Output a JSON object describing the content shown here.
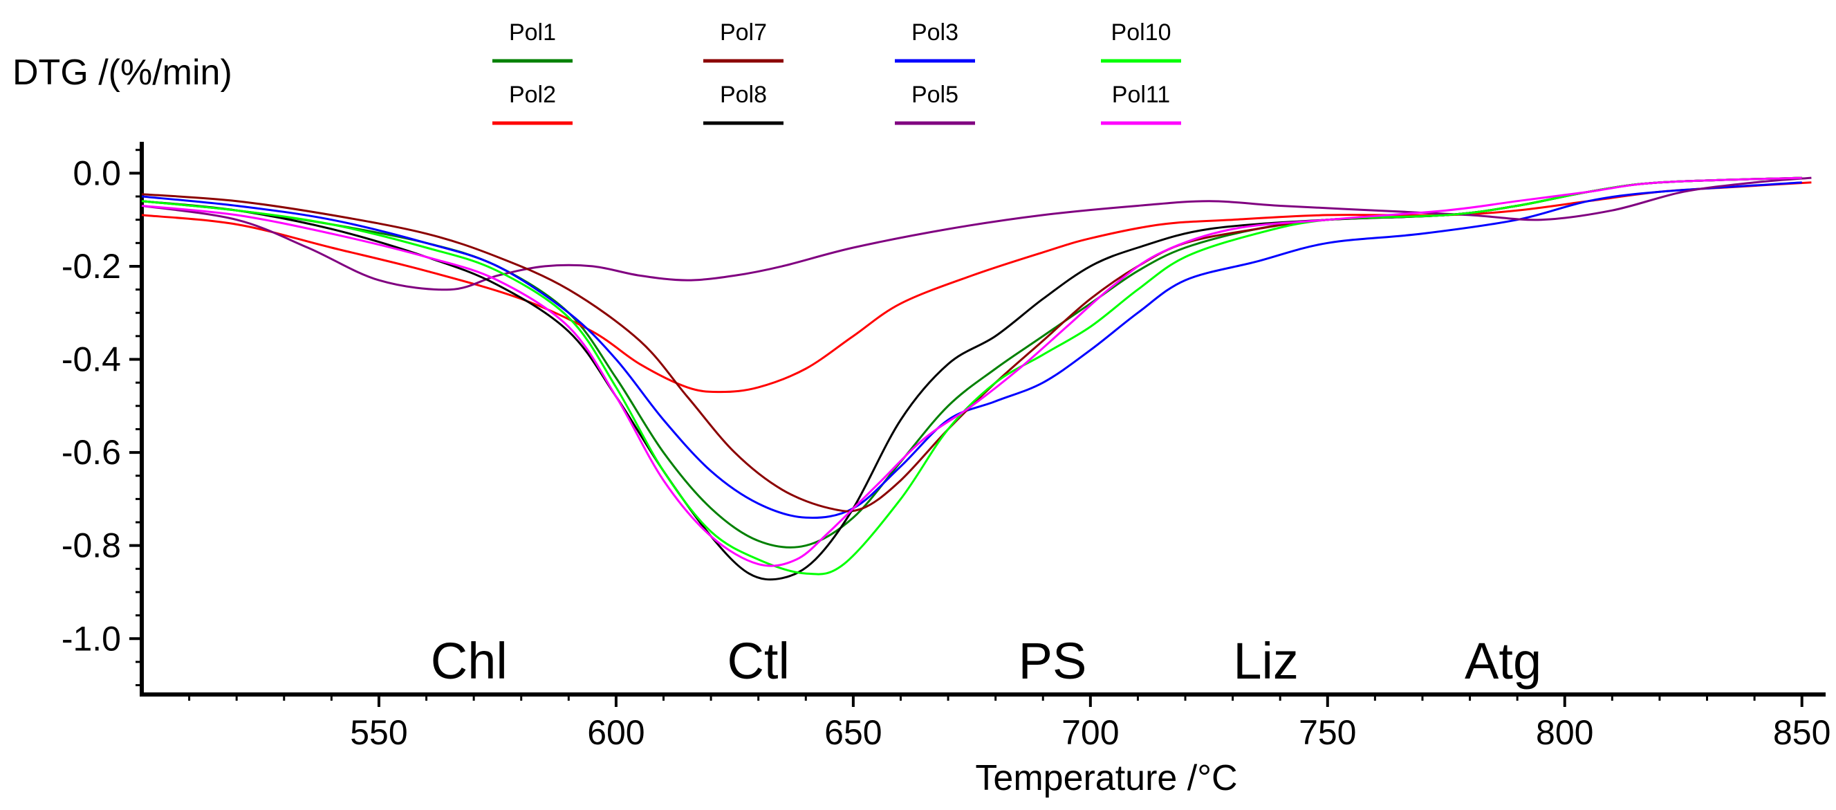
{
  "chart_data": {
    "type": "line",
    "title": "",
    "xlabel": "Temperature /°C",
    "ylabel": "DTG /(%/min)",
    "xlim": [
      500,
      855
    ],
    "ylim": [
      -1.12,
      0.06
    ],
    "grid": false,
    "legend_position": "top",
    "xticks": [
      550,
      600,
      650,
      700,
      750,
      800,
      850
    ],
    "yticks": [
      0.0,
      -0.2,
      -0.4,
      -0.6,
      -0.8,
      -1.0
    ],
    "xtick_labels": [
      "550",
      "600",
      "650",
      "700",
      "750",
      "800",
      "850"
    ],
    "ytick_labels": [
      "0.0",
      "-0.2",
      "-0.4",
      "-0.6",
      "-0.8",
      "-1.0"
    ],
    "annotations": [
      {
        "text": "Chl",
        "x": 569,
        "y": -1.05
      },
      {
        "text": "Ctl",
        "x": 630,
        "y": -1.05
      },
      {
        "text": "PS",
        "x": 692,
        "y": -1.05
      },
      {
        "text": "Liz",
        "x": 737,
        "y": -1.05
      },
      {
        "text": "Atg",
        "x": 787,
        "y": -1.05
      }
    ],
    "series": [
      {
        "name": "Pol1",
        "color": "#008000",
        "points": [
          [
            500,
            -0.06
          ],
          [
            520,
            -0.08
          ],
          [
            540,
            -0.11
          ],
          [
            560,
            -0.15
          ],
          [
            575,
            -0.2
          ],
          [
            590,
            -0.3
          ],
          [
            600,
            -0.44
          ],
          [
            610,
            -0.6
          ],
          [
            620,
            -0.72
          ],
          [
            630,
            -0.79
          ],
          [
            640,
            -0.8
          ],
          [
            650,
            -0.74
          ],
          [
            660,
            -0.62
          ],
          [
            670,
            -0.5
          ],
          [
            680,
            -0.42
          ],
          [
            690,
            -0.35
          ],
          [
            700,
            -0.28
          ],
          [
            710,
            -0.21
          ],
          [
            720,
            -0.16
          ],
          [
            735,
            -0.12
          ],
          [
            750,
            -0.1
          ],
          [
            775,
            -0.09
          ],
          [
            790,
            -0.07
          ],
          [
            805,
            -0.04
          ],
          [
            820,
            -0.02
          ],
          [
            850,
            -0.01
          ]
        ]
      },
      {
        "name": "Pol2",
        "color": "#ff0000",
        "points": [
          [
            500,
            -0.09
          ],
          [
            520,
            -0.11
          ],
          [
            540,
            -0.16
          ],
          [
            560,
            -0.21
          ],
          [
            580,
            -0.27
          ],
          [
            595,
            -0.34
          ],
          [
            605,
            -0.41
          ],
          [
            615,
            -0.46
          ],
          [
            622,
            -0.47
          ],
          [
            630,
            -0.46
          ],
          [
            640,
            -0.42
          ],
          [
            650,
            -0.35
          ],
          [
            660,
            -0.28
          ],
          [
            675,
            -0.22
          ],
          [
            690,
            -0.17
          ],
          [
            700,
            -0.14
          ],
          [
            715,
            -0.11
          ],
          [
            730,
            -0.1
          ],
          [
            750,
            -0.09
          ],
          [
            775,
            -0.09
          ],
          [
            790,
            -0.08
          ],
          [
            805,
            -0.06
          ],
          [
            820,
            -0.04
          ],
          [
            835,
            -0.03
          ],
          [
            852,
            -0.02
          ]
        ]
      },
      {
        "name": "Pol3",
        "color": "#0000ff",
        "points": [
          [
            500,
            -0.05
          ],
          [
            520,
            -0.07
          ],
          [
            540,
            -0.1
          ],
          [
            560,
            -0.15
          ],
          [
            575,
            -0.2
          ],
          [
            590,
            -0.3
          ],
          [
            600,
            -0.4
          ],
          [
            610,
            -0.53
          ],
          [
            620,
            -0.64
          ],
          [
            630,
            -0.71
          ],
          [
            640,
            -0.74
          ],
          [
            650,
            -0.72
          ],
          [
            660,
            -0.63
          ],
          [
            670,
            -0.53
          ],
          [
            680,
            -0.49
          ],
          [
            690,
            -0.45
          ],
          [
            700,
            -0.38
          ],
          [
            710,
            -0.3
          ],
          [
            720,
            -0.23
          ],
          [
            735,
            -0.19
          ],
          [
            750,
            -0.15
          ],
          [
            770,
            -0.13
          ],
          [
            790,
            -0.1
          ],
          [
            805,
            -0.06
          ],
          [
            820,
            -0.04
          ],
          [
            850,
            -0.02
          ]
        ]
      },
      {
        "name": "Pol5",
        "color": "#800080",
        "points": [
          [
            500,
            -0.07
          ],
          [
            520,
            -0.1
          ],
          [
            535,
            -0.16
          ],
          [
            550,
            -0.23
          ],
          [
            565,
            -0.25
          ],
          [
            575,
            -0.22
          ],
          [
            585,
            -0.2
          ],
          [
            595,
            -0.2
          ],
          [
            605,
            -0.22
          ],
          [
            615,
            -0.23
          ],
          [
            625,
            -0.22
          ],
          [
            635,
            -0.2
          ],
          [
            650,
            -0.16
          ],
          [
            670,
            -0.12
          ],
          [
            690,
            -0.09
          ],
          [
            710,
            -0.07
          ],
          [
            725,
            -0.06
          ],
          [
            740,
            -0.07
          ],
          [
            760,
            -0.08
          ],
          [
            780,
            -0.09
          ],
          [
            795,
            -0.1
          ],
          [
            810,
            -0.08
          ],
          [
            825,
            -0.04
          ],
          [
            840,
            -0.02
          ],
          [
            852,
            -0.01
          ]
        ]
      },
      {
        "name": "Pol7",
        "color": "#8b0000",
        "points": [
          [
            500,
            -0.045
          ],
          [
            520,
            -0.06
          ],
          [
            540,
            -0.09
          ],
          [
            560,
            -0.13
          ],
          [
            575,
            -0.18
          ],
          [
            590,
            -0.25
          ],
          [
            605,
            -0.36
          ],
          [
            615,
            -0.48
          ],
          [
            625,
            -0.6
          ],
          [
            635,
            -0.68
          ],
          [
            645,
            -0.72
          ],
          [
            652,
            -0.72
          ],
          [
            660,
            -0.66
          ],
          [
            670,
            -0.55
          ],
          [
            680,
            -0.45
          ],
          [
            690,
            -0.36
          ],
          [
            700,
            -0.27
          ],
          [
            710,
            -0.2
          ],
          [
            720,
            -0.15
          ],
          [
            735,
            -0.12
          ],
          [
            750,
            -0.1
          ],
          [
            775,
            -0.09
          ],
          [
            790,
            -0.07
          ],
          [
            805,
            -0.04
          ],
          [
            820,
            -0.02
          ],
          [
            850,
            -0.01
          ]
        ]
      },
      {
        "name": "Pol8",
        "color": "#000000",
        "points": [
          [
            500,
            -0.06
          ],
          [
            520,
            -0.08
          ],
          [
            540,
            -0.12
          ],
          [
            560,
            -0.18
          ],
          [
            575,
            -0.24
          ],
          [
            590,
            -0.34
          ],
          [
            600,
            -0.48
          ],
          [
            610,
            -0.64
          ],
          [
            620,
            -0.78
          ],
          [
            628,
            -0.86
          ],
          [
            635,
            -0.87
          ],
          [
            642,
            -0.83
          ],
          [
            650,
            -0.72
          ],
          [
            660,
            -0.53
          ],
          [
            670,
            -0.41
          ],
          [
            680,
            -0.35
          ],
          [
            690,
            -0.27
          ],
          [
            700,
            -0.2
          ],
          [
            710,
            -0.16
          ],
          [
            725,
            -0.12
          ],
          [
            750,
            -0.1
          ],
          [
            775,
            -0.09
          ],
          [
            790,
            -0.07
          ],
          [
            805,
            -0.04
          ],
          [
            820,
            -0.02
          ],
          [
            850,
            -0.01
          ]
        ]
      },
      {
        "name": "Pol10",
        "color": "#00ff00",
        "points": [
          [
            500,
            -0.06
          ],
          [
            520,
            -0.08
          ],
          [
            540,
            -0.11
          ],
          [
            560,
            -0.16
          ],
          [
            575,
            -0.21
          ],
          [
            590,
            -0.31
          ],
          [
            600,
            -0.46
          ],
          [
            610,
            -0.64
          ],
          [
            620,
            -0.77
          ],
          [
            630,
            -0.83
          ],
          [
            640,
            -0.86
          ],
          [
            648,
            -0.84
          ],
          [
            660,
            -0.7
          ],
          [
            670,
            -0.55
          ],
          [
            680,
            -0.45
          ],
          [
            690,
            -0.39
          ],
          [
            700,
            -0.33
          ],
          [
            710,
            -0.25
          ],
          [
            720,
            -0.18
          ],
          [
            735,
            -0.13
          ],
          [
            750,
            -0.1
          ],
          [
            775,
            -0.09
          ],
          [
            790,
            -0.07
          ],
          [
            805,
            -0.04
          ],
          [
            820,
            -0.02
          ],
          [
            850,
            -0.01
          ]
        ]
      },
      {
        "name": "Pol11",
        "color": "#ff00ff",
        "points": [
          [
            500,
            -0.07
          ],
          [
            520,
            -0.09
          ],
          [
            540,
            -0.13
          ],
          [
            560,
            -0.18
          ],
          [
            575,
            -0.23
          ],
          [
            590,
            -0.33
          ],
          [
            600,
            -0.48
          ],
          [
            610,
            -0.66
          ],
          [
            620,
            -0.78
          ],
          [
            630,
            -0.84
          ],
          [
            638,
            -0.83
          ],
          [
            645,
            -0.77
          ],
          [
            655,
            -0.67
          ],
          [
            665,
            -0.57
          ],
          [
            675,
            -0.5
          ],
          [
            685,
            -0.42
          ],
          [
            695,
            -0.33
          ],
          [
            705,
            -0.24
          ],
          [
            715,
            -0.17
          ],
          [
            730,
            -0.12
          ],
          [
            750,
            -0.1
          ],
          [
            775,
            -0.08
          ],
          [
            790,
            -0.06
          ],
          [
            805,
            -0.04
          ],
          [
            820,
            -0.02
          ],
          [
            850,
            -0.01
          ]
        ]
      }
    ]
  }
}
